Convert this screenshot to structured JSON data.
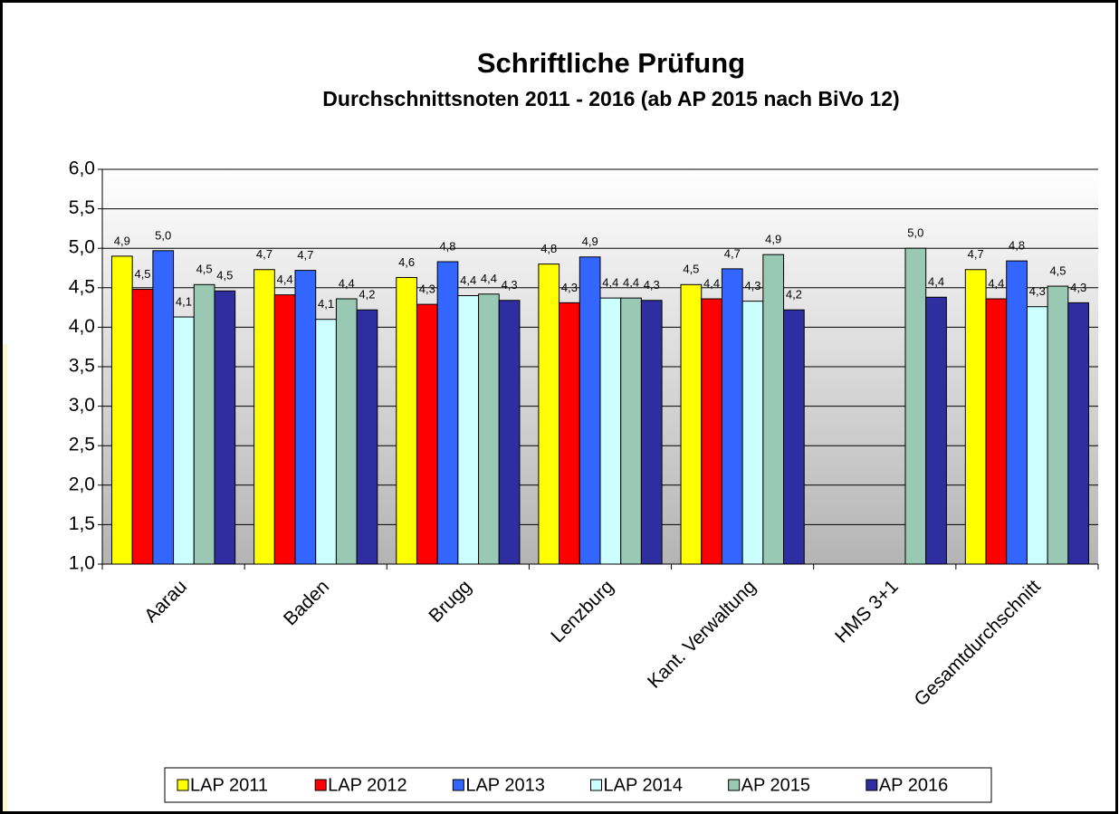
{
  "chart_data": {
    "type": "bar",
    "title": "Schriftliche Prüfung",
    "subtitle": "Durchschnittsnoten 2011 - 2016 (ab AP 2015 nach BiVo 12)",
    "categories": [
      "Aarau",
      "Baden",
      "Brugg",
      "Lenzburg",
      "Kant. Verwaltung",
      "HMS 3+1",
      "Gesamtdurchschnitt"
    ],
    "series": [
      {
        "name": "LAP 2011",
        "color": "#ffff00",
        "values": [
          4.9,
          4.73,
          4.63,
          4.8,
          4.54,
          null,
          4.73
        ],
        "value_labels": [
          "4,9",
          "4,7",
          "4,6",
          "4,8",
          "4,5",
          null,
          "4,7"
        ]
      },
      {
        "name": "LAP 2012",
        "color": "#ff0000",
        "values": [
          4.48,
          4.41,
          4.29,
          4.31,
          4.36,
          null,
          4.36
        ],
        "value_labels": [
          "4,5",
          "4,4",
          "4,3",
          "4,3",
          "4,4",
          null,
          "4,4"
        ]
      },
      {
        "name": "LAP 2013",
        "color": "#3366ff",
        "values": [
          4.97,
          4.72,
          4.83,
          4.89,
          4.74,
          null,
          4.84
        ],
        "value_labels": [
          "5,0",
          "4,7",
          "4,8",
          "4,9",
          "4,7",
          null,
          "4,8"
        ]
      },
      {
        "name": "LAP 2014",
        "color": "#ccffff",
        "values": [
          4.13,
          4.1,
          4.4,
          4.37,
          4.33,
          null,
          4.26
        ],
        "value_labels": [
          "4,1",
          "4,1",
          "4,4",
          "4,4",
          "4,3",
          null,
          "4,3"
        ]
      },
      {
        "name": "AP 2015",
        "color": "#99c9b4",
        "values": [
          4.54,
          4.36,
          4.42,
          4.37,
          4.92,
          5.0,
          4.52
        ],
        "value_labels": [
          "4,5",
          "4,4",
          "4,4",
          "4,4",
          "4,9",
          "5,0",
          "4,5"
        ]
      },
      {
        "name": "AP 2016",
        "color": "#2e2ea0",
        "values": [
          4.46,
          4.22,
          4.34,
          4.34,
          4.22,
          4.38,
          4.31
        ],
        "value_labels": [
          "4,5",
          "4,2",
          "4,3",
          "4,3",
          "4,2",
          "4,4",
          "4,3"
        ]
      }
    ],
    "ylim": [
      1,
      6
    ],
    "yticks": [
      {
        "value": 1,
        "label": "1,0"
      },
      {
        "value": 1.5,
        "label": "1,5"
      },
      {
        "value": 2,
        "label": "2,0"
      },
      {
        "value": 2.5,
        "label": "2,5"
      },
      {
        "value": 3,
        "label": "3,0"
      },
      {
        "value": 3.5,
        "label": "3,5"
      },
      {
        "value": 4,
        "label": "4,0"
      },
      {
        "value": 4.5,
        "label": "4,5"
      },
      {
        "value": 5,
        "label": "5,0"
      },
      {
        "value": 5.5,
        "label": "5,5"
      },
      {
        "value": 6,
        "label": "6,0"
      }
    ],
    "grid": true,
    "legend": "bottom"
  }
}
